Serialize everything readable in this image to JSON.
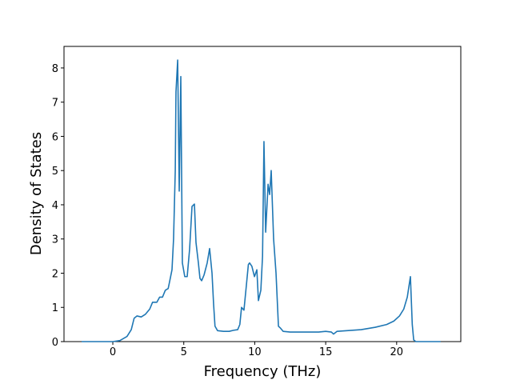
{
  "chart_data": {
    "type": "line",
    "x_label": "Frequency (THz)",
    "y_label": "Density of States",
    "color": "#1f77b4",
    "xlim": [
      -3.44,
      24.52
    ],
    "ylim": [
      0,
      8.63
    ],
    "xticks": [
      0,
      5,
      10,
      15,
      20
    ],
    "yticks": [
      0,
      1,
      2,
      3,
      4,
      5,
      6,
      7,
      8
    ],
    "x": [
      -2.2,
      0,
      0.5,
      1.0,
      1.3,
      1.5,
      1.7,
      2.0,
      2.3,
      2.6,
      2.8,
      3.1,
      3.3,
      3.5,
      3.7,
      3.9,
      4.0,
      4.17,
      4.28,
      4.4,
      4.45,
      4.57,
      4.68,
      4.79,
      4.9,
      5.07,
      5.24,
      5.41,
      5.58,
      5.75,
      5.86,
      6.03,
      6.14,
      6.26,
      6.43,
      6.65,
      6.82,
      6.99,
      7.1,
      7.2,
      7.38,
      7.8,
      8.2,
      8.5,
      8.8,
      8.95,
      9.07,
      9.24,
      9.4,
      9.55,
      9.64,
      9.8,
      9.98,
      10.15,
      10.26,
      10.43,
      10.55,
      10.65,
      10.77,
      10.94,
      11.05,
      11.16,
      11.33,
      11.5,
      11.67,
      11.8,
      12.0,
      12.5,
      13.5,
      14.5,
      15.0,
      15.4,
      15.55,
      15.8,
      16.5,
      17.5,
      18.5,
      19.3,
      19.8,
      20.2,
      20.5,
      20.75,
      20.97,
      21.1,
      21.2,
      21.35,
      23.1
    ],
    "values": [
      0,
      0,
      0.03,
      0.15,
      0.35,
      0.68,
      0.75,
      0.72,
      0.8,
      0.95,
      1.15,
      1.15,
      1.3,
      1.3,
      1.5,
      1.55,
      1.75,
      2.1,
      3.0,
      5.0,
      7.3,
      8.23,
      4.4,
      7.75,
      2.3,
      1.9,
      1.9,
      2.7,
      3.95,
      4.02,
      2.9,
      2.3,
      1.85,
      1.78,
      1.95,
      2.3,
      2.72,
      2.0,
      1.1,
      0.45,
      0.32,
      0.3,
      0.3,
      0.33,
      0.35,
      0.5,
      1.0,
      0.92,
      1.6,
      2.25,
      2.3,
      2.2,
      1.9,
      2.1,
      1.2,
      1.5,
      2.5,
      5.85,
      3.2,
      4.6,
      4.3,
      5.0,
      3.0,
      2.0,
      0.45,
      0.4,
      0.3,
      0.28,
      0.28,
      0.28,
      0.3,
      0.28,
      0.22,
      0.3,
      0.32,
      0.35,
      0.42,
      0.5,
      0.6,
      0.75,
      0.95,
      1.3,
      1.9,
      0.5,
      0.05,
      0,
      0
    ]
  }
}
